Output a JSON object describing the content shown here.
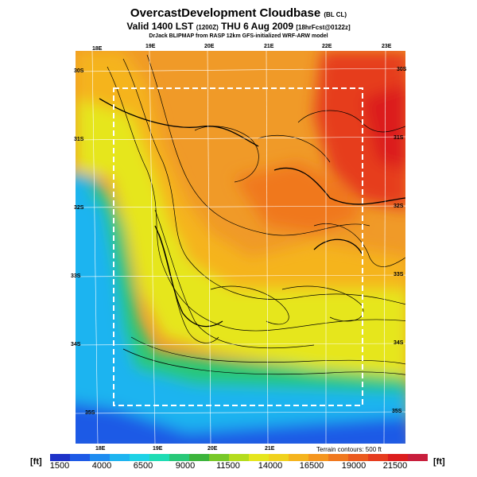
{
  "header": {
    "title": "OvercastDevelopment Cloudbase",
    "title_suffix": "(BL CL)",
    "subtitle_main": "Valid 1400 LST",
    "subtitle_code": "(1200Z)",
    "subtitle_date": "THU 6 Aug 2009",
    "subtitle_run": "[18hrFcst@0122z]",
    "credit": "DrJack BLIPMAP from RASP 12km GFS-initialized WRF-ARW model"
  },
  "map": {
    "top_lon_ticks": [
      "18E",
      "19E",
      "20E",
      "21E",
      "22E",
      "23E"
    ],
    "bottom_lon_ticks": [
      "18E",
      "19E",
      "20E",
      "21E"
    ],
    "left_lat_ticks": [
      "30S",
      "31S",
      "32S",
      "33S",
      "34S",
      "35S"
    ],
    "right_lat_ticks": [
      "30S",
      "31S",
      "32S",
      "33S",
      "34S",
      "35S"
    ],
    "terrain_note": "Terrain contours: 500 ft"
  },
  "colorbar": {
    "unit_left": "[ft]",
    "unit_right": "[ft]",
    "labels": [
      "1500",
      "4000",
      "6500",
      "9000",
      "11500",
      "14000",
      "16500",
      "19000",
      "21500"
    ],
    "colors": [
      "#1e32c8",
      "#1e5ae6",
      "#1e8cf0",
      "#1eb4f0",
      "#1ed2e6",
      "#1edcb4",
      "#28c878",
      "#3cb43c",
      "#78c828",
      "#b4dc1e",
      "#e6e61e",
      "#f0d21e",
      "#f5b41e",
      "#f5961e",
      "#f0781e",
      "#eb5a1e",
      "#e63c1e",
      "#dc1e1e",
      "#c81e3c"
    ]
  }
}
